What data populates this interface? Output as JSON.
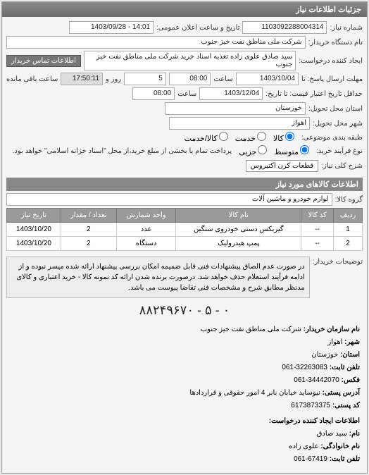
{
  "panel_title": "جزئیات اطلاعات نیاز",
  "req_number_label": "شماره نیاز:",
  "req_number": "1103092288004314",
  "announce_label": "تاریخ و ساعت اعلان عمومی:",
  "announce_value": "14:01 - 1403/09/28",
  "buyer_org_label": "نام دستگاه خریدار:",
  "buyer_org": "شرکت ملی مناطق نفت خیز جنوب",
  "creator_label": "ایجاد کننده درخواست:",
  "creator": "سید صادق علوی زاده  تغذیه اسناد خرید  شرکت ملی مناطق نفت خیز جنوب",
  "contact_btn": "اطلاعات تماس خریدار",
  "deadline_label": "مهلت ارسال پاسخ: تا",
  "deadline_date": "1403/10/04",
  "time_label": "ساعت",
  "deadline_time": "08:00",
  "days_label": "روز و",
  "days": "5",
  "remain_time": "17:50:11",
  "remain_label": "ساعت باقی مانده",
  "validity_label": "حداقل تاریخ اعتبار قیمت: تا تاریخ:",
  "validity_date": "1403/12/04",
  "validity_time": "08:00",
  "province_label": "استان محل تحویل:",
  "province": "خوزستان",
  "city_label": "شهر محل تحویل:",
  "city": "اهواز",
  "subject_type_label": "طبقه بندی موضوعی:",
  "radio_goods": "کالا",
  "radio_service": "خدمت",
  "radio_both": "کالا/خدمت",
  "process_label": "نوع فرآیند خرید:",
  "radio_mid": "متوسط",
  "radio_partial": "جزیی",
  "process_note": "پرداخت تمام یا بخشی از مبلغ خرید،از محل \"اسناد خزانه اسلامی\" خواهد بود.",
  "need_desc_label": "شرح کلی نیاز:",
  "need_desc": "قطعات کرن اکتیروس",
  "items_section": "اطلاعات کالاهای مورد نیاز",
  "group_label": "گروه کالا:",
  "group": "لوازم خودرو و ماشین آلات",
  "table": {
    "headers": [
      "ردیف",
      "کد کالا",
      "نام کالا",
      "واحد شمارش",
      "تعداد / مقدار",
      "تاریخ نیاز"
    ],
    "rows": [
      [
        "1",
        "--",
        "گیربکس دستی خودروی سنگین",
        "عدد",
        "2",
        "1403/10/20"
      ],
      [
        "2",
        "--",
        "پمپ هیدرولیک",
        "دستگاه",
        "2",
        "1403/10/20"
      ]
    ]
  },
  "buyer_note_label": "توضیحات خریدار:",
  "buyer_note": "در صورت عدم الصاق پیشنهادات فنی قابل ضمیمه امکان بررسی پیشنهاد ارائه شده میسر نبوده و از ادامه فرآیند استعلام حذف خواهد شد. درصورت برنده شدن ارائه کد نمونه کالا - خرید اعتباری و کالای مدنظر مطابق شرح و مشخصات فنی تقاضا پیوست می باشد.",
  "dash_line": "۰ - ۵ - ۸۸۲۴۹۶۷۰",
  "org_info": {
    "org_label": "نام سازمان خریدار:",
    "org": "شرکت ملی مناطق نفت خیز جنوب",
    "city_label": "شهر:",
    "city": "اهواز",
    "province_label": "استان:",
    "province": "خوزستان",
    "phone_label": "تلفن ثابت:",
    "phone": "32263083-061",
    "fax_label": "فکس:",
    "fax": "34442070-061",
    "addr_label": "آدرس پستی:",
    "addr": "نیوساید خیابان بابر 4 امور حقوقی و قراردادها",
    "post_label": "کد پستی:",
    "post": "6173873375",
    "req_creator_section": "اطلاعات ایجاد کننده درخواست:",
    "name_label": "نام:",
    "name": "سید صادق",
    "lname_label": "نام خانوادگی:",
    "lname": "علوی زاده",
    "tel_label": "تلفن ثابت:",
    "tel": "67419-061"
  }
}
